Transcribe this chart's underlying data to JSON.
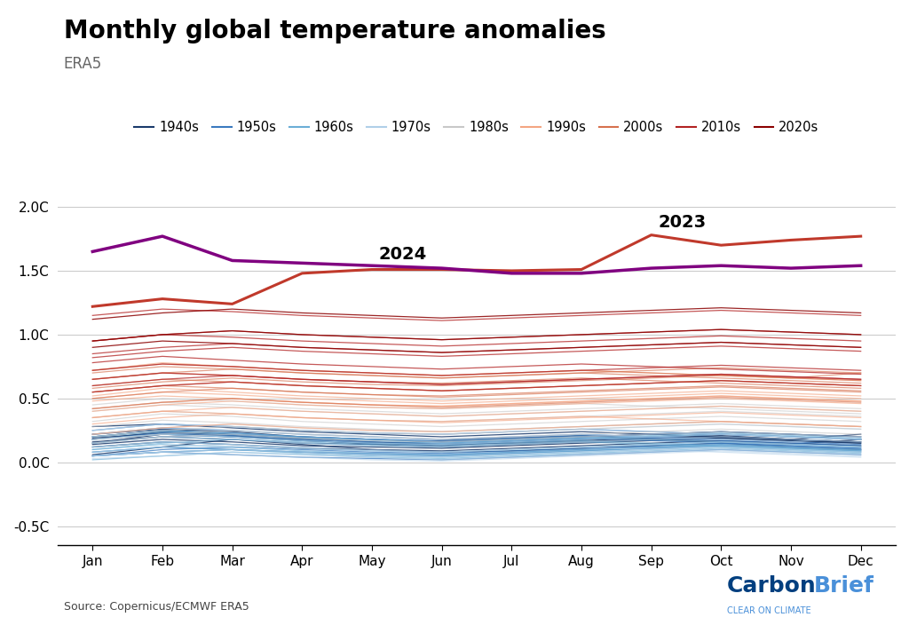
{
  "title": "Monthly global temperature anomalies",
  "subtitle": "ERA5",
  "source": "Source: Copernicus/ECMWF ERA5",
  "months": [
    "Jan",
    "Feb",
    "Mar",
    "Apr",
    "May",
    "Jun",
    "Jul",
    "Aug",
    "Sep",
    "Oct",
    "Nov",
    "Dec"
  ],
  "ylim": [
    -0.65,
    2.15
  ],
  "data": {
    "1940": [
      0.06,
      0.12,
      0.18,
      0.14,
      0.1,
      0.08,
      0.09,
      0.11,
      0.13,
      0.15,
      0.12,
      0.1
    ],
    "1941": [
      0.15,
      0.22,
      0.2,
      0.18,
      0.14,
      0.17,
      0.19,
      0.21,
      0.18,
      0.16,
      0.14,
      0.18
    ],
    "1942": [
      0.2,
      0.25,
      0.22,
      0.19,
      0.16,
      0.14,
      0.15,
      0.17,
      0.19,
      0.21,
      0.18,
      0.16
    ],
    "1943": [
      0.18,
      0.24,
      0.21,
      0.17,
      0.15,
      0.13,
      0.16,
      0.18,
      0.2,
      0.19,
      0.17,
      0.15
    ],
    "1944": [
      0.28,
      0.3,
      0.27,
      0.24,
      0.22,
      0.2,
      0.22,
      0.24,
      0.22,
      0.2,
      0.18,
      0.22
    ],
    "1945": [
      0.22,
      0.26,
      0.24,
      0.2,
      0.18,
      0.16,
      0.18,
      0.2,
      0.22,
      0.24,
      0.22,
      0.2
    ],
    "1946": [
      0.19,
      0.23,
      0.2,
      0.17,
      0.15,
      0.14,
      0.16,
      0.18,
      0.2,
      0.22,
      0.2,
      0.18
    ],
    "1947": [
      0.16,
      0.2,
      0.18,
      0.15,
      0.14,
      0.12,
      0.14,
      0.16,
      0.18,
      0.2,
      0.18,
      0.16
    ],
    "1948": [
      0.14,
      0.18,
      0.16,
      0.13,
      0.12,
      0.11,
      0.13,
      0.15,
      0.17,
      0.19,
      0.17,
      0.15
    ],
    "1949": [
      0.12,
      0.16,
      0.14,
      0.11,
      0.1,
      0.09,
      0.11,
      0.13,
      0.15,
      0.17,
      0.15,
      0.13
    ],
    "1950": [
      0.05,
      0.08,
      0.1,
      0.08,
      0.07,
      0.06,
      0.08,
      0.1,
      0.12,
      0.14,
      0.12,
      0.1
    ],
    "1951": [
      0.15,
      0.2,
      0.22,
      0.2,
      0.18,
      0.17,
      0.19,
      0.21,
      0.19,
      0.17,
      0.15,
      0.13
    ],
    "1952": [
      0.2,
      0.25,
      0.23,
      0.2,
      0.18,
      0.16,
      0.18,
      0.2,
      0.22,
      0.24,
      0.22,
      0.2
    ],
    "1953": [
      0.22,
      0.27,
      0.25,
      0.22,
      0.2,
      0.18,
      0.2,
      0.22,
      0.2,
      0.18,
      0.16,
      0.14
    ],
    "1954": [
      0.05,
      0.1,
      0.12,
      0.1,
      0.08,
      0.07,
      0.09,
      0.11,
      0.13,
      0.15,
      0.13,
      0.11
    ],
    "1955": [
      0.08,
      0.12,
      0.1,
      0.08,
      0.06,
      0.05,
      0.07,
      0.09,
      0.11,
      0.13,
      0.11,
      0.09
    ],
    "1956": [
      0.05,
      0.08,
      0.06,
      0.04,
      0.03,
      0.02,
      0.04,
      0.06,
      0.08,
      0.1,
      0.08,
      0.06
    ],
    "1957": [
      0.18,
      0.23,
      0.21,
      0.18,
      0.16,
      0.15,
      0.17,
      0.19,
      0.17,
      0.15,
      0.13,
      0.11
    ],
    "1958": [
      0.25,
      0.3,
      0.28,
      0.25,
      0.23,
      0.22,
      0.24,
      0.26,
      0.24,
      0.22,
      0.2,
      0.18
    ],
    "1959": [
      0.18,
      0.22,
      0.2,
      0.17,
      0.15,
      0.14,
      0.16,
      0.18,
      0.2,
      0.22,
      0.2,
      0.18
    ],
    "1960": [
      0.1,
      0.15,
      0.18,
      0.16,
      0.14,
      0.13,
      0.15,
      0.17,
      0.15,
      0.13,
      0.11,
      0.09
    ],
    "1961": [
      0.2,
      0.24,
      0.22,
      0.19,
      0.17,
      0.15,
      0.17,
      0.19,
      0.21,
      0.23,
      0.21,
      0.19
    ],
    "1962": [
      0.18,
      0.22,
      0.2,
      0.17,
      0.15,
      0.14,
      0.16,
      0.18,
      0.2,
      0.22,
      0.2,
      0.18
    ],
    "1963": [
      0.15,
      0.2,
      0.18,
      0.15,
      0.13,
      0.12,
      0.14,
      0.16,
      0.14,
      0.12,
      0.1,
      0.08
    ],
    "1964": [
      0.02,
      0.05,
      0.08,
      0.06,
      0.04,
      0.03,
      0.05,
      0.07,
      0.09,
      0.11,
      0.09,
      0.07
    ],
    "1965": [
      0.05,
      0.08,
      0.1,
      0.08,
      0.06,
      0.05,
      0.07,
      0.09,
      0.11,
      0.13,
      0.11,
      0.09
    ],
    "1966": [
      0.12,
      0.16,
      0.14,
      0.11,
      0.09,
      0.08,
      0.1,
      0.12,
      0.14,
      0.16,
      0.14,
      0.12
    ],
    "1967": [
      0.1,
      0.14,
      0.12,
      0.09,
      0.07,
      0.06,
      0.08,
      0.1,
      0.12,
      0.14,
      0.12,
      0.1
    ],
    "1968": [
      0.08,
      0.12,
      0.1,
      0.07,
      0.05,
      0.04,
      0.06,
      0.08,
      0.1,
      0.12,
      0.1,
      0.08
    ],
    "1969": [
      0.2,
      0.25,
      0.23,
      0.2,
      0.18,
      0.16,
      0.18,
      0.2,
      0.18,
      0.16,
      0.14,
      0.12
    ],
    "1970": [
      0.15,
      0.2,
      0.18,
      0.15,
      0.13,
      0.12,
      0.14,
      0.16,
      0.18,
      0.2,
      0.18,
      0.16
    ],
    "1971": [
      0.05,
      0.08,
      0.1,
      0.08,
      0.06,
      0.04,
      0.06,
      0.08,
      0.1,
      0.12,
      0.1,
      0.08
    ],
    "1972": [
      0.12,
      0.16,
      0.14,
      0.11,
      0.09,
      0.08,
      0.1,
      0.12,
      0.14,
      0.16,
      0.14,
      0.12
    ],
    "1973": [
      0.25,
      0.3,
      0.28,
      0.25,
      0.23,
      0.22,
      0.24,
      0.26,
      0.24,
      0.22,
      0.2,
      0.18
    ],
    "1974": [
      0.03,
      0.05,
      0.08,
      0.06,
      0.04,
      0.02,
      0.04,
      0.06,
      0.08,
      0.1,
      0.08,
      0.06
    ],
    "1975": [
      0.08,
      0.12,
      0.14,
      0.12,
      0.1,
      0.08,
      0.1,
      0.12,
      0.1,
      0.08,
      0.06,
      0.04
    ],
    "1976": [
      0.05,
      0.08,
      0.06,
      0.04,
      0.02,
      0.01,
      0.03,
      0.05,
      0.07,
      0.09,
      0.07,
      0.05
    ],
    "1977": [
      0.25,
      0.3,
      0.28,
      0.25,
      0.23,
      0.22,
      0.24,
      0.26,
      0.28,
      0.3,
      0.28,
      0.26
    ],
    "1978": [
      0.18,
      0.22,
      0.2,
      0.17,
      0.15,
      0.14,
      0.16,
      0.18,
      0.2,
      0.22,
      0.2,
      0.18
    ],
    "1979": [
      0.22,
      0.27,
      0.25,
      0.22,
      0.2,
      0.18,
      0.2,
      0.22,
      0.2,
      0.18,
      0.16,
      0.2
    ],
    "1980": [
      0.32,
      0.38,
      0.36,
      0.32,
      0.3,
      0.28,
      0.3,
      0.32,
      0.34,
      0.36,
      0.34,
      0.32
    ],
    "1981": [
      0.42,
      0.47,
      0.45,
      0.42,
      0.4,
      0.38,
      0.4,
      0.42,
      0.44,
      0.46,
      0.44,
      0.42
    ],
    "1982": [
      0.2,
      0.25,
      0.28,
      0.25,
      0.23,
      0.22,
      0.24,
      0.26,
      0.28,
      0.3,
      0.28,
      0.26
    ],
    "1983": [
      0.45,
      0.5,
      0.48,
      0.45,
      0.43,
      0.42,
      0.44,
      0.46,
      0.44,
      0.42,
      0.4,
      0.38
    ],
    "1984": [
      0.18,
      0.22,
      0.25,
      0.22,
      0.2,
      0.18,
      0.2,
      0.22,
      0.24,
      0.26,
      0.24,
      0.22
    ],
    "1985": [
      0.15,
      0.2,
      0.22,
      0.19,
      0.17,
      0.16,
      0.18,
      0.2,
      0.22,
      0.24,
      0.22,
      0.2
    ],
    "1986": [
      0.22,
      0.27,
      0.3,
      0.27,
      0.25,
      0.24,
      0.26,
      0.28,
      0.3,
      0.32,
      0.3,
      0.28
    ],
    "1987": [
      0.35,
      0.4,
      0.38,
      0.35,
      0.33,
      0.32,
      0.34,
      0.36,
      0.38,
      0.4,
      0.38,
      0.36
    ],
    "1988": [
      0.4,
      0.45,
      0.43,
      0.4,
      0.38,
      0.36,
      0.38,
      0.4,
      0.42,
      0.44,
      0.42,
      0.4
    ],
    "1989": [
      0.28,
      0.33,
      0.31,
      0.28,
      0.26,
      0.24,
      0.26,
      0.28,
      0.3,
      0.32,
      0.3,
      0.28
    ],
    "1990": [
      0.52,
      0.58,
      0.55,
      0.52,
      0.5,
      0.48,
      0.5,
      0.52,
      0.54,
      0.56,
      0.54,
      0.52
    ],
    "1991": [
      0.48,
      0.52,
      0.5,
      0.47,
      0.45,
      0.44,
      0.46,
      0.48,
      0.5,
      0.52,
      0.5,
      0.48
    ],
    "1992": [
      0.22,
      0.27,
      0.3,
      0.27,
      0.25,
      0.24,
      0.26,
      0.28,
      0.3,
      0.32,
      0.3,
      0.28
    ],
    "1993": [
      0.3,
      0.35,
      0.38,
      0.35,
      0.33,
      0.32,
      0.34,
      0.36,
      0.34,
      0.32,
      0.3,
      0.28
    ],
    "1994": [
      0.35,
      0.4,
      0.43,
      0.4,
      0.38,
      0.36,
      0.38,
      0.4,
      0.42,
      0.44,
      0.42,
      0.4
    ],
    "1995": [
      0.5,
      0.55,
      0.53,
      0.5,
      0.48,
      0.46,
      0.48,
      0.5,
      0.52,
      0.54,
      0.52,
      0.5
    ],
    "1996": [
      0.35,
      0.4,
      0.38,
      0.35,
      0.33,
      0.31,
      0.33,
      0.35,
      0.37,
      0.39,
      0.37,
      0.35
    ],
    "1997": [
      0.42,
      0.47,
      0.5,
      0.47,
      0.45,
      0.44,
      0.46,
      0.48,
      0.5,
      0.52,
      0.5,
      0.48
    ],
    "1998": [
      0.72,
      0.78,
      0.75,
      0.72,
      0.7,
      0.68,
      0.7,
      0.72,
      0.7,
      0.68,
      0.66,
      0.64
    ],
    "1999": [
      0.4,
      0.45,
      0.48,
      0.45,
      0.43,
      0.42,
      0.44,
      0.46,
      0.48,
      0.5,
      0.48,
      0.46
    ],
    "2000": [
      0.42,
      0.47,
      0.5,
      0.47,
      0.45,
      0.43,
      0.45,
      0.47,
      0.49,
      0.51,
      0.49,
      0.47
    ],
    "2001": [
      0.55,
      0.6,
      0.58,
      0.55,
      0.53,
      0.52,
      0.54,
      0.56,
      0.58,
      0.6,
      0.58,
      0.56
    ],
    "2002": [
      0.65,
      0.7,
      0.68,
      0.65,
      0.63,
      0.62,
      0.64,
      0.66,
      0.64,
      0.62,
      0.6,
      0.58
    ],
    "2003": [
      0.65,
      0.7,
      0.73,
      0.7,
      0.68,
      0.66,
      0.68,
      0.7,
      0.68,
      0.66,
      0.64,
      0.62
    ],
    "2004": [
      0.55,
      0.6,
      0.63,
      0.6,
      0.58,
      0.56,
      0.58,
      0.6,
      0.62,
      0.64,
      0.62,
      0.6
    ],
    "2005": [
      0.7,
      0.75,
      0.73,
      0.7,
      0.68,
      0.66,
      0.68,
      0.7,
      0.72,
      0.74,
      0.72,
      0.7
    ],
    "2006": [
      0.6,
      0.65,
      0.63,
      0.6,
      0.58,
      0.56,
      0.58,
      0.6,
      0.62,
      0.64,
      0.62,
      0.6
    ],
    "2007": [
      0.72,
      0.77,
      0.75,
      0.72,
      0.7,
      0.68,
      0.7,
      0.72,
      0.7,
      0.68,
      0.66,
      0.7
    ],
    "2008": [
      0.5,
      0.55,
      0.58,
      0.55,
      0.53,
      0.51,
      0.53,
      0.55,
      0.57,
      0.59,
      0.57,
      0.55
    ],
    "2009": [
      0.58,
      0.63,
      0.66,
      0.63,
      0.61,
      0.6,
      0.62,
      0.64,
      0.66,
      0.68,
      0.66,
      0.64
    ],
    "2010": [
      0.78,
      0.83,
      0.8,
      0.77,
      0.75,
      0.73,
      0.75,
      0.77,
      0.75,
      0.73,
      0.71,
      0.69
    ],
    "2011": [
      0.55,
      0.6,
      0.63,
      0.6,
      0.58,
      0.56,
      0.58,
      0.6,
      0.62,
      0.64,
      0.62,
      0.6
    ],
    "2012": [
      0.6,
      0.65,
      0.68,
      0.65,
      0.63,
      0.61,
      0.63,
      0.65,
      0.67,
      0.69,
      0.67,
      0.65
    ],
    "2013": [
      0.65,
      0.7,
      0.68,
      0.65,
      0.63,
      0.61,
      0.63,
      0.65,
      0.67,
      0.69,
      0.67,
      0.65
    ],
    "2014": [
      0.72,
      0.77,
      0.75,
      0.72,
      0.7,
      0.68,
      0.7,
      0.72,
      0.74,
      0.76,
      0.74,
      0.72
    ],
    "2015": [
      0.85,
      0.9,
      0.93,
      0.9,
      0.88,
      0.86,
      0.88,
      0.9,
      0.92,
      0.94,
      0.92,
      0.9
    ],
    "2016": [
      1.15,
      1.2,
      1.18,
      1.15,
      1.13,
      1.11,
      1.13,
      1.15,
      1.17,
      1.19,
      1.17,
      1.15
    ],
    "2017": [
      0.95,
      1.0,
      0.98,
      0.95,
      0.93,
      0.91,
      0.93,
      0.95,
      0.97,
      0.99,
      0.97,
      0.95
    ],
    "2018": [
      0.82,
      0.87,
      0.9,
      0.87,
      0.85,
      0.83,
      0.85,
      0.87,
      0.89,
      0.91,
      0.89,
      0.87
    ],
    "2019": [
      0.95,
      1.0,
      1.03,
      1.0,
      0.98,
      0.96,
      0.98,
      1.0,
      1.02,
      1.04,
      1.02,
      1.0
    ],
    "2020": [
      1.12,
      1.17,
      1.2,
      1.17,
      1.15,
      1.13,
      1.15,
      1.17,
      1.19,
      1.21,
      1.19,
      1.17
    ],
    "2021": [
      0.9,
      0.95,
      0.93,
      0.9,
      0.88,
      0.86,
      0.88,
      0.9,
      0.92,
      0.94,
      0.92,
      0.9
    ],
    "2022": [
      0.95,
      1.0,
      1.03,
      1.0,
      0.98,
      0.96,
      0.98,
      1.0,
      1.02,
      1.04,
      1.02,
      1.0
    ],
    "2023": [
      1.22,
      1.28,
      1.24,
      1.48,
      1.51,
      1.51,
      1.5,
      1.51,
      1.78,
      1.7,
      1.74,
      1.77
    ],
    "2024": [
      1.65,
      1.77,
      1.58,
      1.56,
      1.54,
      1.52,
      1.48,
      1.48,
      1.52,
      1.54,
      1.52,
      1.54
    ]
  }
}
